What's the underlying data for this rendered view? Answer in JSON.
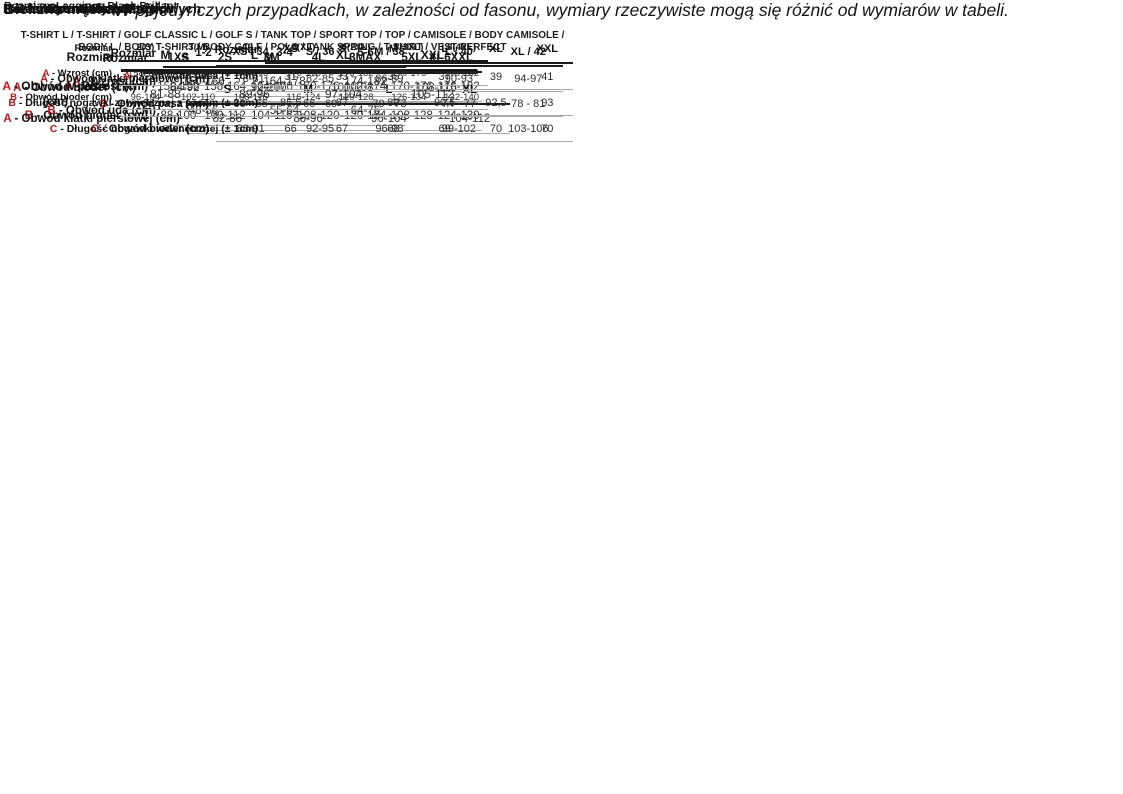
{
  "page": {
    "note": "W pojedynczych przypadkach, w zależności od fasonu, wymiary rzeczywiste mogą się różnić od wymiarów w tabeli."
  },
  "colors": {
    "accent_red": "#c2151b",
    "text": "#1c1c1c",
    "header_line": "#1a1a1a",
    "row_line": "#a9a9a9"
  },
  "sections": {
    "rajstop": {
      "title": "Rozmiary rajstop",
      "corner": "Rozmiar",
      "columns": [
        "1XS",
        "2S",
        "3M",
        "4L",
        "3MAX",
        "5XL",
        "6XXL"
      ],
      "rows": [
        {
          "letter": "A",
          "label": " - Wzrost (cm)",
          "values": [
            "150-158",
            "158-164",
            "164-170",
            "170-176",
            "162-174",
            "170-176",
            "176-182"
          ]
        },
        {
          "letter": "B",
          "label": " - Obwód bioder (cm)",
          "values": [
            "88-100",
            "100-112",
            "104-116",
            "108-120",
            "120-134",
            "108-128",
            "124-139"
          ]
        }
      ]
    },
    "ponczoch": {
      "title": "Rozmiary pończoch",
      "corner": "Rozmiar",
      "columns": [
        "1-2",
        "3-4",
        "5-6"
      ],
      "rows": [
        {
          "letter": "A",
          "label": " - Wzrost (cm)",
          "values": [
            "150-166",
            "164-178",
            "174-182"
          ]
        },
        {
          "letter": "B",
          "label": " - Obwód uda (cm)",
          "values": [
            "48-56",
            "55-64",
            "64-76"
          ]
        }
      ]
    },
    "majtek": {
      "title": "Rozmiary majtek bezszwowych",
      "corner": "",
      "columns": [
        "S",
        "M",
        "L",
        "XL"
      ],
      "rows": [
        {
          "letter": "A",
          "label": " - Obwód bioder (cm)",
          "values": [
            "84-92",
            "92-100",
            "100-108",
            "108-116"
          ]
        }
      ]
    },
    "leggings": {
      "title": "Rozmiary Leggings Black Brillant",
      "corner": "Rozmiar",
      "columns": [
        "2(S)",
        "3(M)",
        "4(L)",
        "5(XL)",
        "6(2XL)",
        "7(3XL)",
        "8(4XL)"
      ],
      "rows": [
        {
          "letter": "A",
          "label": " - Wzrost (cm)",
          "values": [
            "158-164",
            "164-170",
            "170-176",
            "170-176",
            "176-182",
            "170-176",
            "176-182"
          ]
        },
        {
          "letter": "B",
          "label": " - Obwód bioder (cm)",
          "values": [
            "96-104",
            "102-110",
            "108-116",
            "116-124",
            "120-128",
            "126-134",
            "132-140"
          ]
        }
      ]
    },
    "basic": {
      "title": "Basic Line",
      "products": "T-SHIRT L / T-SHIRT / GOLF CLASSIC L / GOLF S / TANK TOP / SPORT TOP / TOP / CAMISOLE / BODY CAMISOLE / BODY L / BODY T-SHIRT / BODY GOLF / POLO / TANK SPRING / T-SHIRT / VEST PERFECT",
      "corner": "",
      "columns": [
        "S",
        "M",
        "L",
        "XL"
      ],
      "rows": [
        {
          "letter": "A",
          "label": " - Obwód klatki piersiowej (cm)",
          "values": [
            "82-88",
            "88-96",
            "96-104",
            "104-112"
          ]
        }
      ]
    },
    "perfect": {
      "title": "Basic Line: Perfect",
      "corner": "",
      "columns": [
        "XS / 34",
        "S / 36",
        "M / 38",
        "L / 40",
        "XL / 42"
      ],
      "rows": [
        {
          "letter": "A",
          "label": " - Obwód klatki piersiowej (cm)",
          "values": [
            "78-81",
            "82-85",
            "86-89",
            "90-93",
            "94-97"
          ]
        },
        {
          "letter": "B",
          "label": " - Obwód pasa (cm)",
          "values": [
            "63 - 65",
            "66 - 69",
            "70 - 73",
            "74 - 77",
            "78 - 81"
          ]
        },
        {
          "letter": "C",
          "label": " - Obwód bioder (cm)",
          "values": [
            "88-91",
            "92-95",
            "96-98",
            "99-102",
            "103-106"
          ]
        }
      ]
    },
    "skinny": {
      "title": "Basic Line: Skinny Hot",
      "corner": "Rozmiar",
      "columns": [
        "XS",
        "S",
        "M",
        "L",
        "XL",
        "XXL"
      ],
      "rows": [
        {
          "letter": "A",
          "label": " - ½ obwodu pasa (± 1cm)",
          "values": [
            "31",
            "33",
            "35",
            "37",
            "39",
            "41"
          ]
        },
        {
          "letter": "B",
          "label": " - Długość nogawki zewnętrznej z pasem (± 2cm)",
          "values": [
            "85,5",
            "87",
            "89",
            "90,5",
            "92,5",
            "93"
          ]
        },
        {
          "letter": "C",
          "label": " - Długość nogawki wewnętrznej (± 1cm)",
          "values": [
            "66",
            "67",
            "68",
            "69",
            "70",
            "70"
          ]
        }
      ]
    },
    "bielizna": {
      "title": "Bielizna męska: Majtki",
      "corner": "Rozmiar",
      "columns": [
        "M",
        "L",
        "XL",
        "XXL"
      ],
      "rows": [
        {
          "letter": "A",
          "label": " - Obwód w pasie (cm)",
          "values": [
            "81-88",
            "89-96",
            "97-104",
            "105-112"
          ]
        }
      ]
    }
  }
}
